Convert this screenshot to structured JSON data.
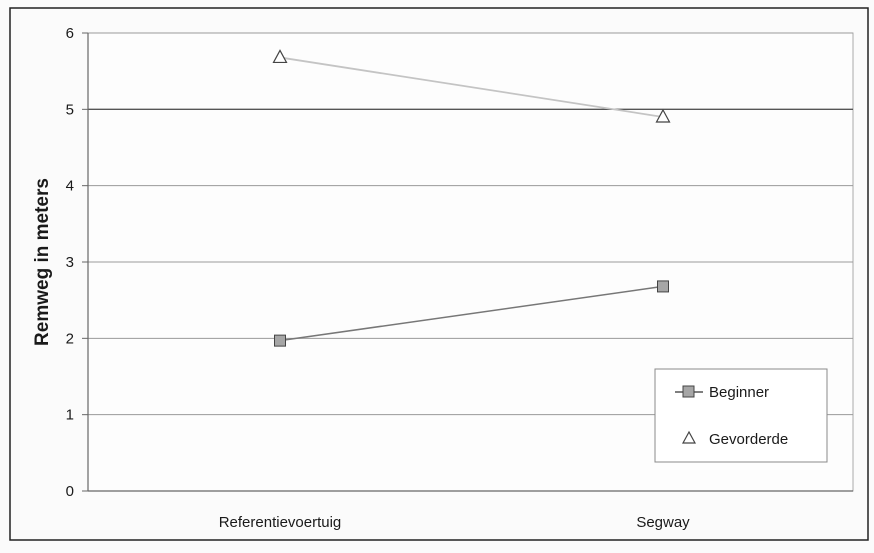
{
  "chart_data": {
    "type": "line",
    "title": "",
    "xlabel": "",
    "ylabel": "Remweg in meters",
    "categories": [
      "Referentievoertuig",
      "Segway"
    ],
    "ylim": [
      0,
      6
    ],
    "yticks": [
      0,
      1,
      2,
      3,
      4,
      5,
      6
    ],
    "grid": true,
    "legend_position": "bottom-right",
    "series": [
      {
        "name": "Beginner",
        "values": [
          1.97,
          2.68
        ],
        "marker": "square",
        "color": "#a6a6a6",
        "line_color": "#777777"
      },
      {
        "name": "Gevorderde",
        "values": [
          5.68,
          4.9
        ],
        "marker": "triangle",
        "color": "#ffffff",
        "line_color": "#c4c4c4"
      }
    ]
  }
}
